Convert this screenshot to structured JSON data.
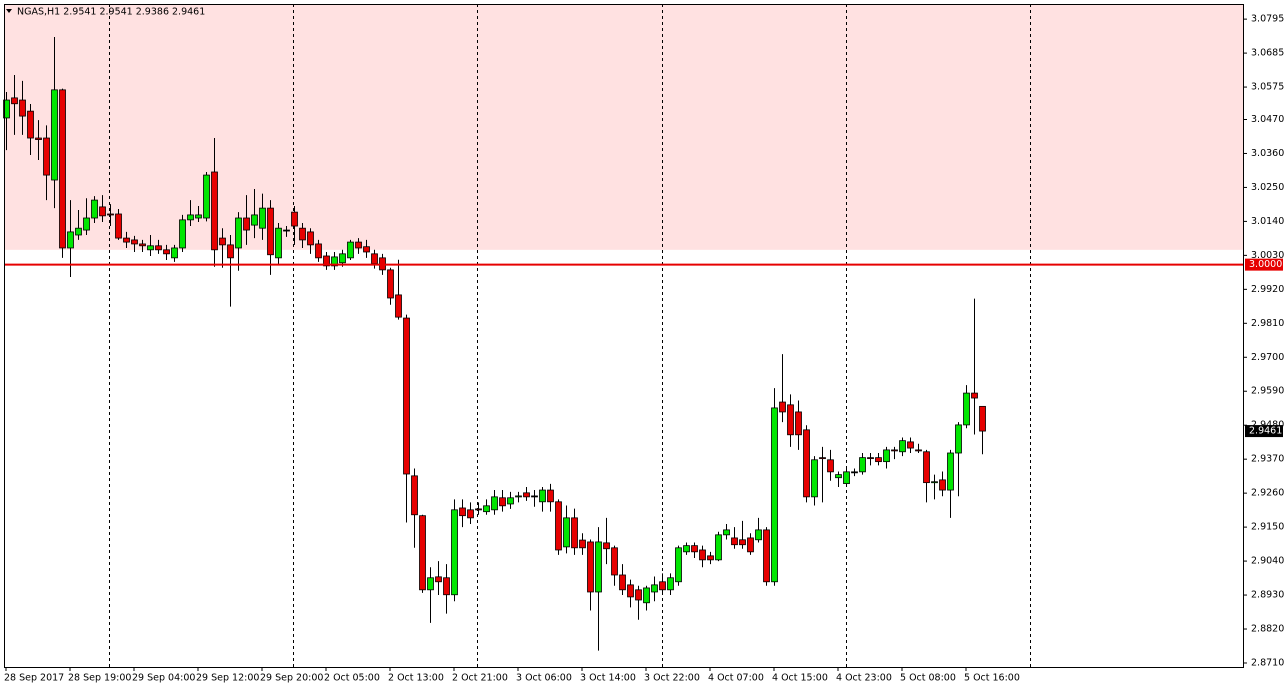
{
  "chart_data": {
    "type": "candlestick",
    "title": "NGAS,H1  2.9541 2.9541 2.9386 2.9461",
    "categories": [
      "28 Sep 2017",
      null,
      null,
      null,
      null,
      null,
      null,
      null,
      "28 Sep 19:00",
      null,
      null,
      null,
      null,
      null,
      null,
      null,
      "29 Sep 04:00",
      null,
      null,
      null,
      null,
      null,
      null,
      null,
      "29 Sep 12:00",
      null,
      null,
      null,
      null,
      null,
      null,
      null,
      "29 Sep 20:00",
      null,
      null,
      null,
      null,
      null,
      null,
      null,
      "2 Oct 05:00",
      null,
      null,
      null,
      null,
      null,
      null,
      null,
      "2 Oct 13:00",
      null,
      null,
      null,
      null,
      null,
      null,
      null,
      "2 Oct 21:00",
      null,
      null,
      null,
      null,
      null,
      null,
      null,
      "3 Oct 06:00",
      null,
      null,
      null,
      null,
      null,
      null,
      null,
      "3 Oct 14:00",
      null,
      null,
      null,
      null,
      null,
      null,
      null,
      "3 Oct 22:00",
      null,
      null,
      null,
      null,
      null,
      null,
      null,
      "4 Oct 07:00",
      null,
      null,
      null,
      null,
      null,
      null,
      null,
      "4 Oct 15:00",
      null,
      null,
      null,
      null,
      null,
      null,
      null,
      "4 Oct 23:00",
      null,
      null,
      null,
      null,
      null,
      null,
      null,
      "5 Oct 08:00",
      null,
      null,
      null,
      null,
      null,
      null,
      null,
      "5 Oct 16:00",
      null,
      null
    ],
    "open": [
      3.0475,
      3.054,
      3.0533,
      3.0497,
      3.041,
      3.041,
      3.0274,
      3.0566,
      3.0054,
      3.0096,
      3.0112,
      3.0151,
      3.0187,
      3.0164,
      3.0164,
      3.0086,
      3.008,
      3.0067,
      3.0048,
      3.0061,
      3.0048,
      3.0022,
      3.0054,
      3.0145,
      3.0151,
      3.0151,
      3.03,
      3.0086,
      3.0064,
      3.0054,
      3.0151,
      3.0128,
      3.0118,
      3.0183,
      3.0022,
      3.0112,
      3.017,
      3.0118,
      3.0106,
      3.0067,
      3.0028,
      2.9996,
      3.0006,
      3.0022,
      3.0073,
      3.0058,
      3.0035,
      3.0022,
      2.9983,
      2.9902,
      2.9827,
      2.9316,
      2.9187,
      2.8947,
      2.8989,
      2.8986,
      2.8931,
      2.9212,
      2.9206,
      2.9209,
      2.92,
      2.9206,
      2.9245,
      2.9225,
      2.9248,
      2.9261,
      2.9251,
      2.9232,
      2.927,
      2.9232,
      2.9086,
      2.918,
      2.9108,
      2.9102,
      2.894,
      2.9099,
      2.9083,
      2.8995,
      2.8963,
      2.8947,
      2.8905,
      2.894,
      2.8973,
      2.8947,
      2.8973,
      2.907,
      2.909,
      2.9076,
      2.9057,
      2.9044,
      2.9125,
      2.9115,
      2.9109,
      2.9115,
      2.9109,
      2.9141,
      2.8973,
      2.9555,
      2.9546,
      2.9523,
      2.9465,
      2.9248,
      2.9375,
      2.9368,
      2.931,
      2.9291,
      2.9329,
      2.9329,
      2.9375,
      2.9375,
      2.9362,
      2.94,
      2.9394,
      2.9426,
      2.94,
      2.9394,
      2.9294,
      2.9303,
      2.927,
      2.939,
      2.9481,
      2.9584,
      2.9541
    ],
    "high": [
      3.0559,
      3.0614,
      3.0595,
      3.052,
      3.0468,
      3.0451,
      3.0737,
      3.057,
      3.0209,
      3.0177,
      3.0215,
      3.0222,
      3.0225,
      3.0196,
      3.018,
      3.0106,
      3.0093,
      3.008,
      3.0096,
      3.008,
      3.0064,
      3.0064,
      3.0161,
      3.0209,
      3.019,
      3.03,
      3.041,
      3.0118,
      3.0096,
      3.017,
      3.0225,
      3.0245,
      3.023,
      3.0209,
      3.0135,
      3.0125,
      3.019,
      3.0135,
      3.0118,
      3.008,
      3.0041,
      3.0041,
      3.0048,
      3.008,
      3.0086,
      3.008,
      3.0048,
      3.0035,
      2.999,
      3.0016,
      2.9838,
      2.934,
      2.919,
      2.902,
      2.904,
      2.903,
      2.924,
      2.924,
      2.923,
      2.923,
      2.924,
      2.927,
      2.927,
      2.9264,
      2.9264,
      2.928,
      2.927,
      2.928,
      2.929,
      2.924,
      2.922,
      2.921,
      2.913,
      2.911,
      2.915,
      2.918,
      2.909,
      2.903,
      2.898,
      2.896,
      2.896,
      2.899,
      2.9,
      2.9,
      2.909,
      2.91,
      2.91,
      2.909,
      2.907,
      2.9135,
      2.916,
      2.915,
      2.917,
      2.913,
      2.918,
      2.915,
      2.96,
      2.971,
      2.958,
      2.956,
      2.948,
      2.938,
      2.941,
      2.94,
      2.933,
      2.934,
      2.934,
      2.939,
      2.939,
      2.939,
      2.941,
      2.941,
      2.944,
      2.944,
      2.942,
      2.94,
      2.932,
      2.933,
      2.94,
      2.949,
      2.961,
      2.989,
      2.9541
    ],
    "low": [
      3.0371,
      3.042,
      3.042,
      3.0355,
      3.0339,
      3.0209,
      3.0183,
      3.0022,
      2.996,
      3.008,
      3.0096,
      3.0135,
      3.0138,
      3.0125,
      3.008,
      3.0054,
      3.0041,
      3.0041,
      3.0028,
      3.0035,
      3.0015,
      3.0009,
      3.0041,
      3.0125,
      3.0138,
      3.014,
      2.9993,
      2.999,
      2.9864,
      2.998,
      3.0064,
      3.0086,
      3.008,
      2.9967,
      3.0,
      3.009,
      3.0064,
      3.0054,
      3.0035,
      3.0009,
      2.9983,
      2.9983,
      2.9993,
      3.0015,
      3.0035,
      3.0022,
      2.9987,
      2.9967,
      2.987,
      2.9822,
      2.9165,
      2.9083,
      2.8937,
      2.884,
      2.893,
      2.887,
      2.891,
      2.915,
      2.916,
      2.919,
      2.919,
      2.919,
      2.92,
      2.9209,
      2.923,
      2.9235,
      2.9216,
      2.92,
      2.92,
      2.906,
      2.9065,
      2.906,
      2.906,
      2.888,
      2.875,
      2.903,
      2.896,
      2.893,
      2.889,
      2.885,
      2.888,
      2.891,
      2.893,
      2.893,
      2.896,
      2.906,
      2.905,
      2.902,
      2.903,
      2.904,
      2.911,
      2.908,
      2.908,
      2.906,
      2.91,
      2.896,
      2.896,
      2.949,
      2.941,
      2.94,
      2.923,
      2.922,
      2.923,
      2.93,
      2.928,
      2.9285,
      2.9315,
      2.932,
      2.935,
      2.935,
      2.934,
      2.937,
      2.938,
      2.939,
      2.939,
      2.923,
      2.924,
      2.925,
      2.918,
      2.925,
      2.947,
      2.945,
      2.9386
    ],
    "close": [
      3.0533,
      3.0521,
      3.0481,
      3.041,
      3.0405,
      3.029,
      3.0566,
      3.0054,
      3.0106,
      3.0118,
      3.0151,
      3.0209,
      3.0158,
      3.0161,
      3.0086,
      3.0073,
      3.0067,
      3.0061,
      3.0061,
      3.0048,
      3.0035,
      3.0054,
      3.0145,
      3.0161,
      3.0161,
      3.029,
      3.0048,
      3.0064,
      3.0022,
      3.0151,
      3.0112,
      3.0161,
      3.0183,
      3.0032,
      3.0118,
      3.0112,
      3.0125,
      3.008,
      3.0064,
      3.0022,
      2.9996,
      3.0025,
      3.0035,
      3.0073,
      3.0054,
      3.0041,
      3.0003,
      2.9983,
      2.9892,
      2.983,
      2.9322,
      2.919,
      2.8947,
      2.8986,
      2.8973,
      2.8931,
      2.9206,
      2.9187,
      2.918,
      2.9206,
      2.9219,
      2.9248,
      2.9219,
      2.9245,
      2.9251,
      2.9248,
      2.9251,
      2.927,
      2.9232,
      2.9076,
      2.918,
      2.9083,
      2.9083,
      2.894,
      2.9102,
      2.908,
      2.8995,
      2.8947,
      2.8924,
      2.8914,
      2.8953,
      2.8963,
      2.8947,
      2.8986,
      2.9083,
      2.909,
      2.907,
      2.9044,
      2.9044,
      2.9125,
      2.9141,
      2.9093,
      2.9093,
      2.907,
      2.9141,
      2.8973,
      2.9536,
      2.9523,
      2.9449,
      2.9449,
      2.9248,
      2.9368,
      2.9372,
      2.9329,
      2.932,
      2.9329,
      2.9329,
      2.9375,
      2.9372,
      2.9362,
      2.94,
      2.9397,
      2.943,
      2.9406,
      2.9397,
      2.9294,
      2.9297,
      2.927,
      2.939,
      2.9481,
      2.9584,
      2.9568,
      2.9461
    ],
    "up_color": "#00e600",
    "down_color": "#e60000",
    "ylim": [
      2.8697,
      3.0844
    ],
    "yticks": [
      3.0795,
      3.0685,
      3.0575,
      {
        "value": 3.047,
        "label": "3.0470"
      },
      {
        "value": 3.036,
        "label": "3.0360"
      },
      {
        "value": 3.025,
        "label": "3.0250"
      },
      {
        "value": 3.014,
        "label": "3.0140"
      },
      {
        "value": 3.003,
        "label": "3.0030"
      },
      {
        "value": 2.992,
        "label": "2.9920"
      },
      {
        "value": 2.981,
        "label": "2.9810"
      },
      {
        "value": 2.97,
        "label": "2.9700"
      },
      {
        "value": 2.959,
        "label": "2.9590"
      },
      {
        "value": 2.948,
        "label": "2.9480"
      },
      {
        "value": 2.937,
        "label": "2.9370"
      },
      {
        "value": 2.926,
        "label": "2.9260"
      },
      {
        "value": 2.915,
        "label": "2.9150"
      },
      {
        "value": 2.904,
        "label": "2.9040"
      },
      {
        "value": 2.893,
        "label": "2.8930"
      },
      {
        "value": 2.882,
        "label": "2.8820"
      },
      {
        "value": 2.871,
        "label": "2.8710"
      }
    ],
    "shaded_zone_from": 3.0048,
    "shaded_zone_color": "#ffe1e1",
    "level_line": {
      "value": 3.0,
      "label": "3.0000",
      "color": "#e60000"
    },
    "current_price": 2.9461
  }
}
